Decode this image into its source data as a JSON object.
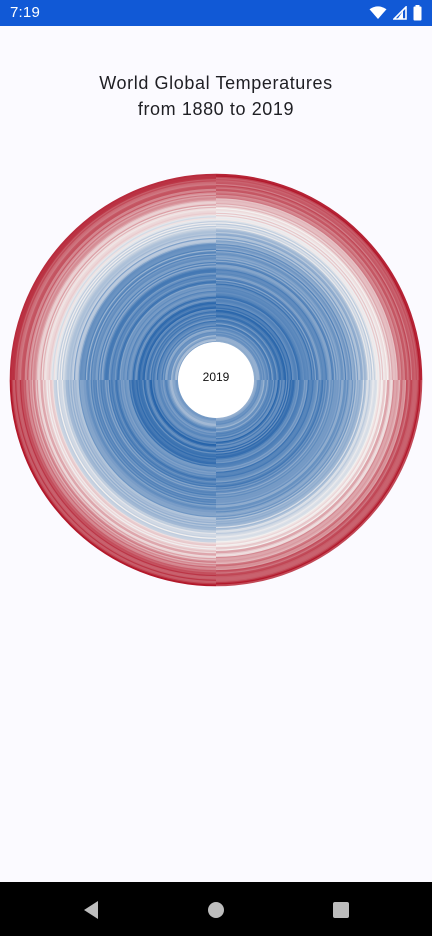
{
  "status_bar": {
    "time": "7:19",
    "icons": [
      "wifi-icon",
      "cellular-signal-icon",
      "battery-icon"
    ],
    "background": "#1159d6"
  },
  "chart": {
    "title_line1": "World Global Temperatures",
    "title_line2": "from 1880 to 2019",
    "center_label": "2019",
    "type": "radial warming stripes",
    "color_scale": {
      "cold": "#1f5fa8",
      "neutral": "#f4f1f0",
      "warm": "#b2182b"
    }
  },
  "nav_bar": {
    "buttons": [
      "back-icon",
      "home-icon",
      "recents-icon"
    ]
  }
}
